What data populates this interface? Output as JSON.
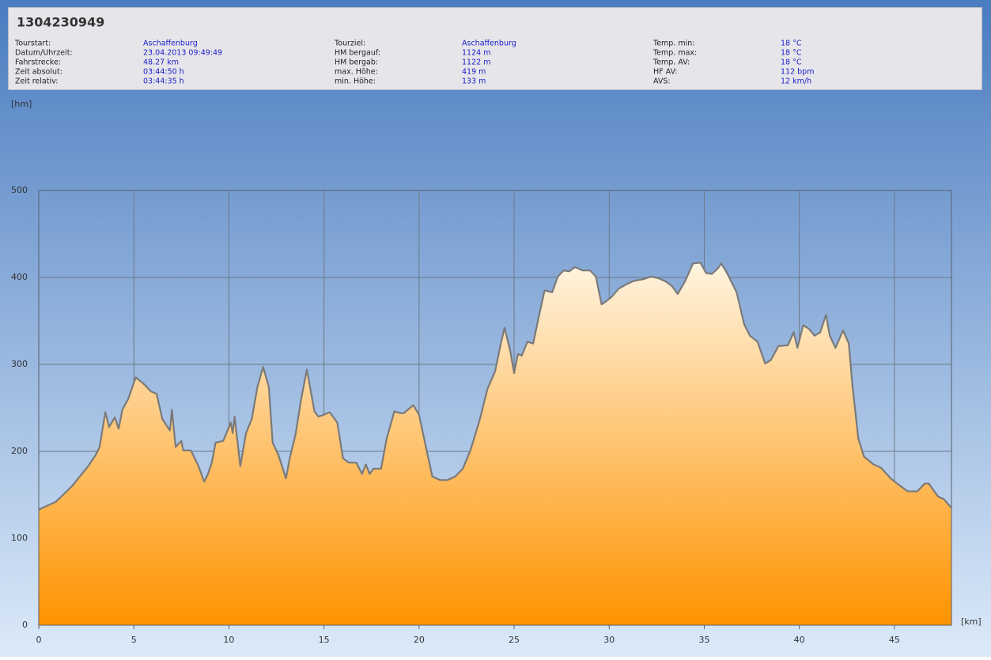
{
  "info_panel": {
    "title": "1304230949",
    "columns": [
      {
        "labels": [
          "Tourstart:",
          "Datum/Uhrzeit:",
          "Fahrstrecke:",
          "Zeit absolut:",
          "Zeit relativ:"
        ],
        "values": [
          "Aschaffenburg",
          "23.04.2013 09:49:49",
          "48.27 km",
          "03:44:50 h",
          "03:44:35 h"
        ]
      },
      {
        "labels": [
          "Tourziel:",
          "HM bergauf:",
          "HM bergab:",
          "max. Höhe:",
          "min. Höhe:"
        ],
        "values": [
          "Aschaffenburg",
          "1124 m",
          "1122 m",
          "419 m",
          "133 m"
        ]
      },
      {
        "labels": [
          "Temp. min:",
          "Temp. max:",
          "Temp. AV:",
          "HF AV:",
          "AVS:"
        ],
        "values": [
          "18 °C",
          "18 °C",
          "18 °C",
          "112 bpm",
          "12 km/h"
        ]
      }
    ]
  },
  "chart_data": {
    "type": "area",
    "y_label": "[hm]",
    "x_label": "[km]",
    "xlim": [
      0,
      48
    ],
    "xticks": [
      0,
      5,
      10,
      15,
      20,
      25,
      30,
      35,
      40,
      45
    ],
    "ylim": [
      0,
      500
    ],
    "yticks": [
      0,
      100,
      200,
      300,
      400,
      500
    ],
    "grid": true,
    "area_colors": [
      "#fff4e0",
      "#ff9300"
    ],
    "series": [
      {
        "color": "#7a7a7a",
        "x": [
          0,
          0.9,
          1.75,
          2.6,
          3.0,
          3.2,
          3.5,
          3.7,
          4.0,
          4.2,
          4.4,
          4.7,
          5.1,
          5.5,
          5.9,
          6.2,
          6.5,
          6.9,
          7.0,
          7.2,
          7.5,
          7.6,
          8.0,
          8.4,
          8.7,
          8.9,
          9.1,
          9.3,
          9.7,
          10.1,
          10.2,
          10.3,
          10.6,
          10.9,
          11.2,
          11.5,
          11.8,
          12.1,
          12.3,
          12.6,
          13.0,
          13.2,
          13.5,
          13.8,
          14.1,
          14.5,
          14.7,
          15.0,
          15.3,
          15.7,
          16.0,
          16.3,
          16.7,
          17.0,
          17.2,
          17.4,
          17.6,
          18.0,
          18.3,
          18.7,
          19.0,
          19.2,
          19.7,
          20.0,
          20.4,
          20.7,
          21.1,
          21.5,
          21.9,
          22.3,
          22.7,
          23.2,
          23.6,
          24.0,
          24.3,
          24.5,
          24.8,
          25.0,
          25.2,
          25.4,
          25.7,
          26.0,
          26.3,
          26.6,
          27.0,
          27.3,
          27.6,
          27.9,
          28.2,
          28.6,
          29.0,
          29.3,
          29.6,
          29.8,
          30.1,
          30.5,
          30.9,
          31.3,
          31.8,
          32.2,
          32.6,
          33.0,
          33.3,
          33.6,
          34.0,
          34.4,
          34.8,
          35.1,
          35.4,
          35.7,
          35.9,
          36.2,
          36.7,
          37.1,
          37.4,
          37.8,
          38.2,
          38.5,
          38.9,
          39.4,
          39.7,
          39.9,
          40.2,
          40.5,
          40.8,
          41.1,
          41.4,
          41.6,
          41.9,
          42.3,
          42.6,
          42.8,
          43.1,
          43.4,
          43.9,
          44.3,
          44.8,
          45.2,
          45.7,
          46.2,
          46.6,
          46.8,
          47.3,
          47.6,
          48.0
        ],
        "values": [
          133,
          142,
          160,
          183,
          196,
          205,
          245,
          228,
          239,
          226,
          248,
          260,
          285,
          278,
          269,
          266,
          237,
          224,
          248,
          205,
          212,
          201,
          201,
          183,
          165,
          174,
          187,
          210,
          212,
          233,
          221,
          240,
          183,
          221,
          237,
          274,
          297,
          274,
          210,
          196,
          169,
          192,
          219,
          260,
          294,
          246,
          240,
          242,
          245,
          233,
          192,
          187,
          187,
          174,
          185,
          174,
          180,
          180,
          215,
          246,
          244,
          244,
          253,
          242,
          201,
          171,
          167,
          167,
          171,
          180,
          201,
          237,
          272,
          292,
          324,
          342,
          315,
          290,
          312,
          310,
          326,
          324,
          355,
          385,
          383,
          401,
          408,
          407,
          412,
          408,
          408,
          401,
          369,
          372,
          377,
          387,
          392,
          396,
          398,
          401,
          399,
          395,
          390,
          381,
          396,
          416,
          417,
          405,
          404,
          410,
          416,
          405,
          383,
          346,
          333,
          326,
          301,
          305,
          321,
          322,
          337,
          319,
          345,
          341,
          333,
          337,
          357,
          333,
          319,
          339,
          324,
          274,
          215,
          194,
          185,
          181,
          169,
          162,
          154,
          154,
          163,
          163,
          148,
          145,
          135
        ]
      }
    ]
  }
}
